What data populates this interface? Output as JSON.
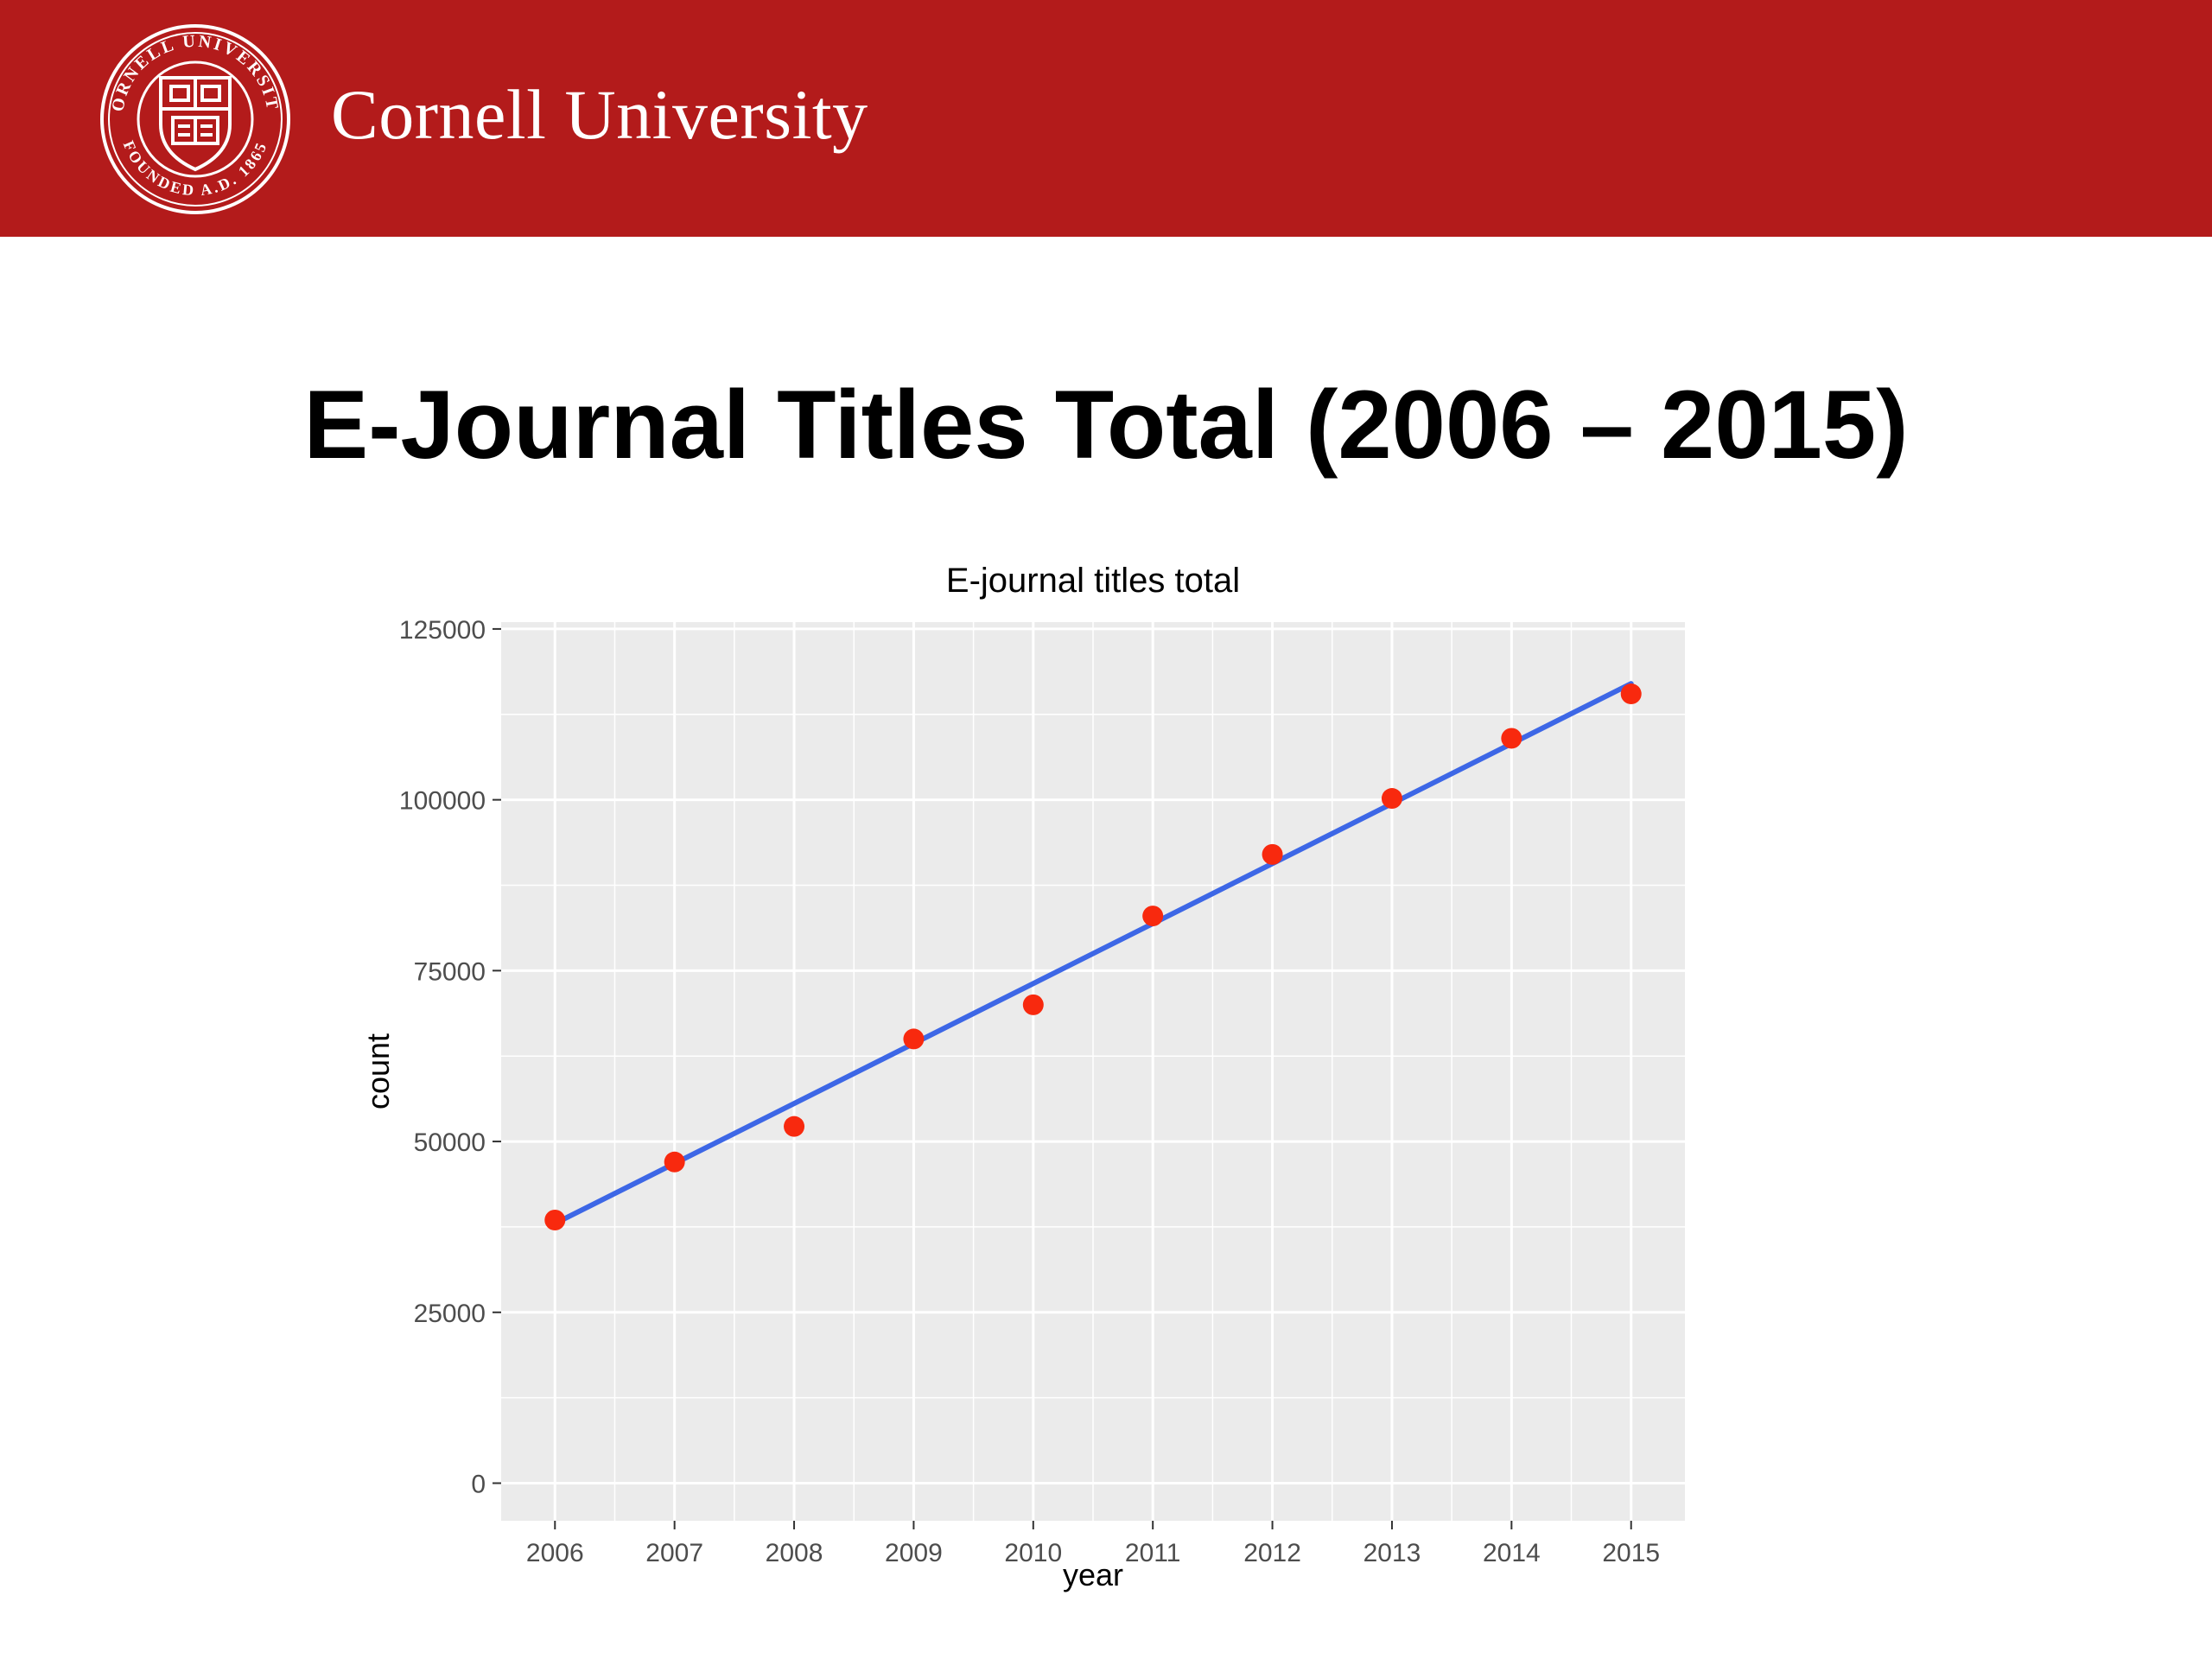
{
  "banner": {
    "brand_name": "Cornell University",
    "logo_text_top": "CORNELL UNIVERSITY",
    "logo_text_bottom": "FOUNDED A.D. 1865",
    "brand_color": "#b31b1b"
  },
  "slide": {
    "title": "E-Journal Titles Total (2006 – 2015)"
  },
  "chart_data": {
    "type": "scatter",
    "title": "E-journal titles total",
    "xlabel": "year",
    "ylabel": "count",
    "x": [
      2006,
      2007,
      2008,
      2009,
      2010,
      2011,
      2012,
      2013,
      2014,
      2015
    ],
    "y": [
      38500,
      47000,
      52200,
      65000,
      70000,
      83000,
      92000,
      100200,
      109000,
      115500
    ],
    "trend_line": {
      "x": [
        2006,
        2015
      ],
      "y": [
        38000,
        117000
      ]
    },
    "xlim": [
      2005.55,
      2015.45
    ],
    "ylim": [
      -5500,
      126000
    ],
    "y_ticks": [
      0,
      25000,
      50000,
      75000,
      100000,
      125000
    ],
    "x_ticks": [
      2006,
      2007,
      2008,
      2009,
      2010,
      2011,
      2012,
      2013,
      2014,
      2015
    ],
    "grid": true,
    "legend": "none",
    "colors": {
      "points": "#f8290e",
      "trend_line": "#3d67e6",
      "panel_background": "#ebebeb",
      "grid": "#ffffff"
    }
  }
}
